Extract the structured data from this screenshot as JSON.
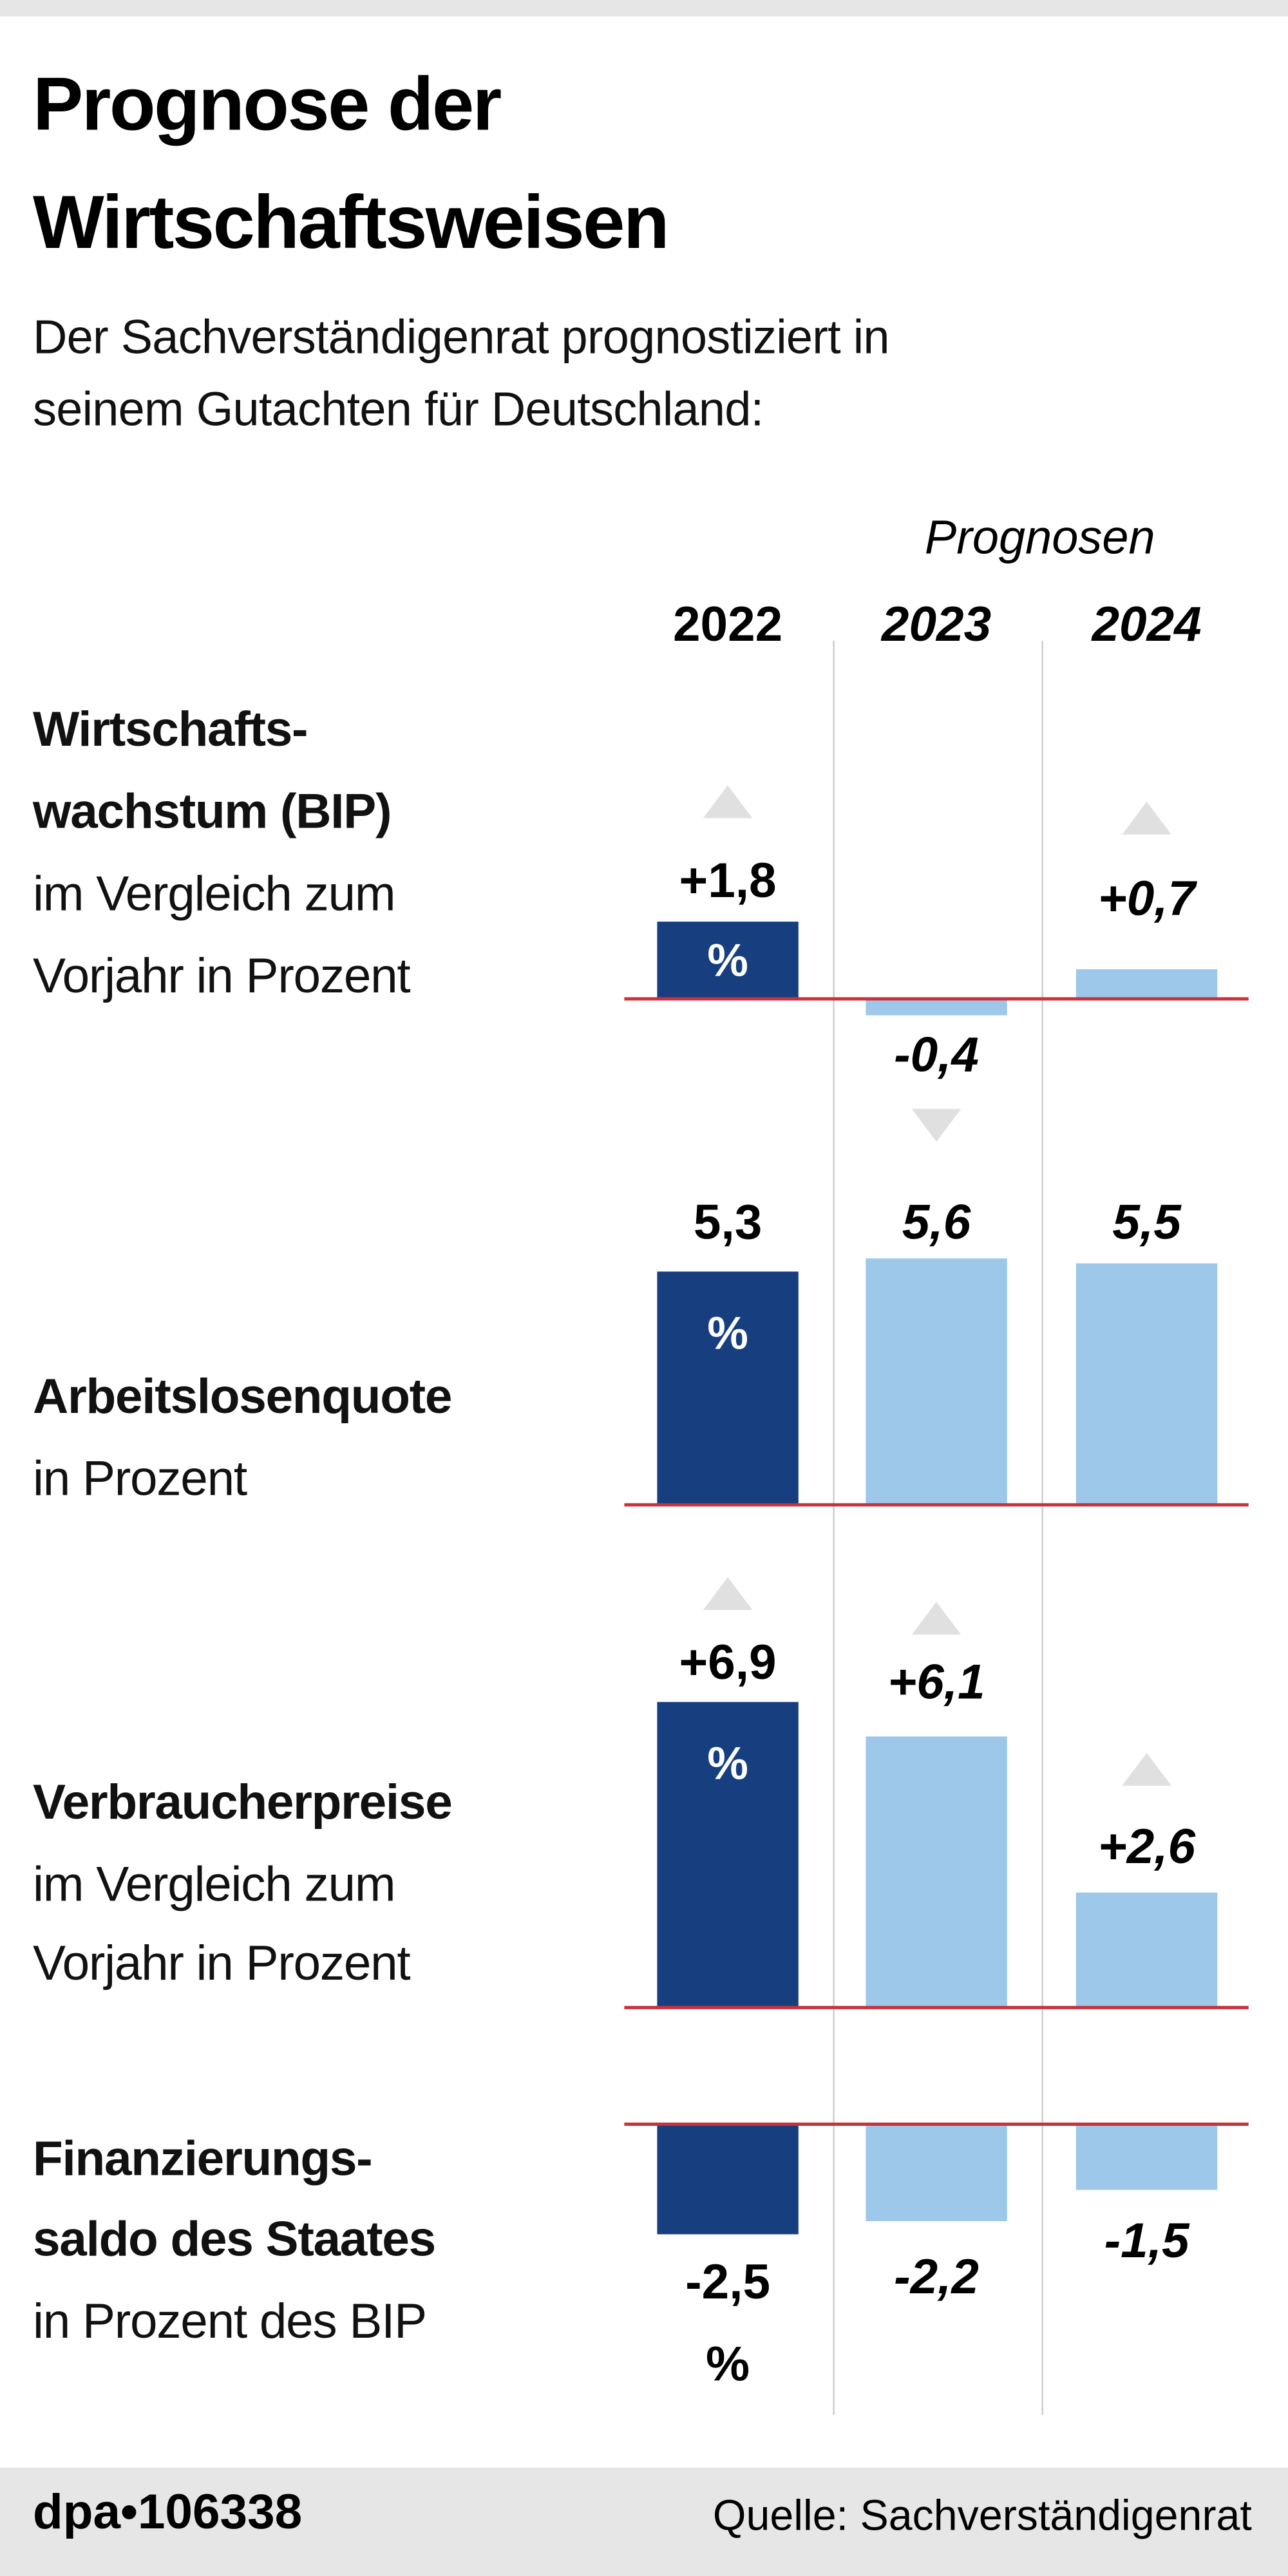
{
  "title_lines": [
    "Prognose der",
    "Wirtschaftsweisen"
  ],
  "subtitle_lines": [
    "Der Sachverständigenrat prognostiziert in",
    "seinem Gutachten für Deutschland:"
  ],
  "prognosen_label": "Prognosen",
  "footer": {
    "agency": "dpa•106338",
    "source": "Quelle: Sachverständigenrat"
  },
  "colors": {
    "actual": "#173f7f",
    "forecast": "#9dc8ea",
    "zero_line": "#c8323c",
    "arrow": "#e0e0e0",
    "footer_bg": "#e6e6e6"
  },
  "chart_data": {
    "type": "bar",
    "categories": [
      "2022",
      "2023",
      "2024"
    ],
    "forecast_categories": [
      "2023",
      "2024"
    ],
    "unit_marker": "%",
    "panels": [
      {
        "label_lines": [
          "Wirtschafts-",
          "wachstum (BIP)",
          "im Vergleich zum",
          "Vorjahr in Prozent"
        ],
        "bold_lines": 2,
        "values": [
          1.8,
          -0.4,
          0.7
        ],
        "labels": [
          "+1,8",
          "-0,4",
          "+0,7"
        ],
        "arrows": [
          "up",
          "down",
          "up"
        ]
      },
      {
        "label_lines": [
          "Arbeitslosenquote",
          "in Prozent"
        ],
        "bold_lines": 1,
        "values": [
          5.3,
          5.6,
          5.5
        ],
        "labels": [
          "5,3",
          "5,6",
          "5,5"
        ],
        "arrows": [
          null,
          null,
          null
        ]
      },
      {
        "label_lines": [
          "Verbraucherpreise",
          "im Vergleich zum",
          "Vorjahr in Prozent"
        ],
        "bold_lines": 1,
        "values": [
          6.9,
          6.1,
          2.6
        ],
        "labels": [
          "+6,9",
          "+6,1",
          "+2,6"
        ],
        "arrows": [
          "up",
          "up",
          "up"
        ]
      },
      {
        "label_lines": [
          "Finanzierungs-",
          "saldo des Staates",
          "in Prozent des BIP"
        ],
        "bold_lines": 2,
        "values": [
          -2.5,
          -2.2,
          -1.5
        ],
        "labels": [
          "-2,5",
          "-2,2",
          "-1,5"
        ],
        "arrows": [
          null,
          null,
          null
        ]
      }
    ]
  }
}
